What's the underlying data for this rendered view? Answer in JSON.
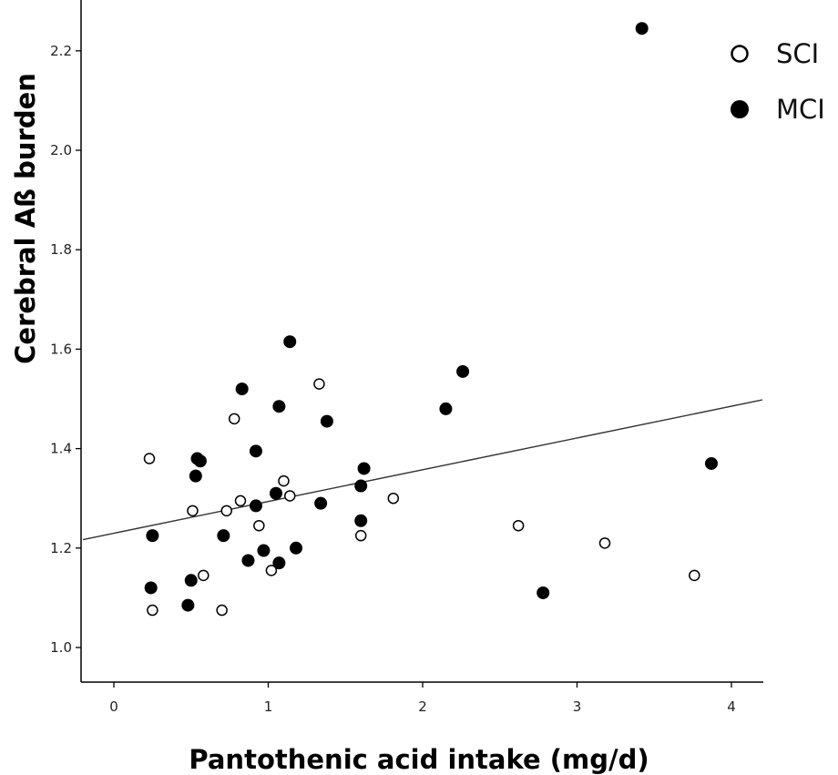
{
  "chart_data": {
    "type": "scatter",
    "title": "",
    "xlabel": "Pantothenic acid intake (mg/d)",
    "ylabel": "Cerebral Aß burden",
    "xlim": [
      -0.2,
      4.2
    ],
    "ylim": [
      0.93,
      2.28
    ],
    "xticks": [
      0,
      1,
      2,
      3,
      4
    ],
    "xtick_labels": [
      "0",
      "1",
      "2",
      "3",
      "4"
    ],
    "yticks": [
      1.0,
      1.2,
      1.4,
      1.6,
      1.8,
      2.0,
      2.2
    ],
    "ytick_labels": [
      "1.0",
      "1.2",
      "1.4",
      "1.6",
      "1.8",
      "2.0",
      "2.2"
    ],
    "grid": false,
    "legend_position": "top-right",
    "series": [
      {
        "name": "SCI",
        "marker": "open-circle",
        "color": "#000000",
        "points": [
          {
            "x": 0.23,
            "y": 1.38
          },
          {
            "x": 0.25,
            "y": 1.075
          },
          {
            "x": 0.51,
            "y": 1.275
          },
          {
            "x": 0.58,
            "y": 1.145
          },
          {
            "x": 0.7,
            "y": 1.075
          },
          {
            "x": 0.73,
            "y": 1.275
          },
          {
            "x": 0.78,
            "y": 1.46
          },
          {
            "x": 0.82,
            "y": 1.295
          },
          {
            "x": 0.94,
            "y": 1.245
          },
          {
            "x": 1.02,
            "y": 1.155
          },
          {
            "x": 1.1,
            "y": 1.335
          },
          {
            "x": 1.14,
            "y": 1.305
          },
          {
            "x": 1.33,
            "y": 1.53
          },
          {
            "x": 1.6,
            "y": 1.225
          },
          {
            "x": 1.81,
            "y": 1.3
          },
          {
            "x": 2.62,
            "y": 1.245
          },
          {
            "x": 3.18,
            "y": 1.21
          },
          {
            "x": 3.76,
            "y": 1.145
          }
        ]
      },
      {
        "name": "MCI",
        "marker": "filled-circle",
        "color": "#000000",
        "points": [
          {
            "x": 0.24,
            "y": 1.12
          },
          {
            "x": 0.25,
            "y": 1.225
          },
          {
            "x": 0.48,
            "y": 1.085
          },
          {
            "x": 0.5,
            "y": 1.135
          },
          {
            "x": 0.53,
            "y": 1.345
          },
          {
            "x": 0.54,
            "y": 1.38
          },
          {
            "x": 0.56,
            "y": 1.375
          },
          {
            "x": 0.71,
            "y": 1.225
          },
          {
            "x": 0.83,
            "y": 1.52
          },
          {
            "x": 0.87,
            "y": 1.175
          },
          {
            "x": 0.92,
            "y": 1.395
          },
          {
            "x": 0.92,
            "y": 1.285
          },
          {
            "x": 0.97,
            "y": 1.195
          },
          {
            "x": 1.05,
            "y": 1.31
          },
          {
            "x": 1.07,
            "y": 1.17
          },
          {
            "x": 1.07,
            "y": 1.485
          },
          {
            "x": 1.14,
            "y": 1.615
          },
          {
            "x": 1.18,
            "y": 1.2
          },
          {
            "x": 1.34,
            "y": 1.29
          },
          {
            "x": 1.38,
            "y": 1.455
          },
          {
            "x": 1.6,
            "y": 1.255
          },
          {
            "x": 1.6,
            "y": 1.325
          },
          {
            "x": 1.62,
            "y": 1.36
          },
          {
            "x": 2.15,
            "y": 1.48
          },
          {
            "x": 2.26,
            "y": 1.555
          },
          {
            "x": 2.78,
            "y": 1.11
          },
          {
            "x": 3.42,
            "y": 2.245
          },
          {
            "x": 3.87,
            "y": 1.37
          }
        ]
      }
    ],
    "fit_line": {
      "label": "linear fit",
      "x": [
        -0.2,
        4.2
      ],
      "y": [
        1.217,
        1.498
      ]
    }
  }
}
